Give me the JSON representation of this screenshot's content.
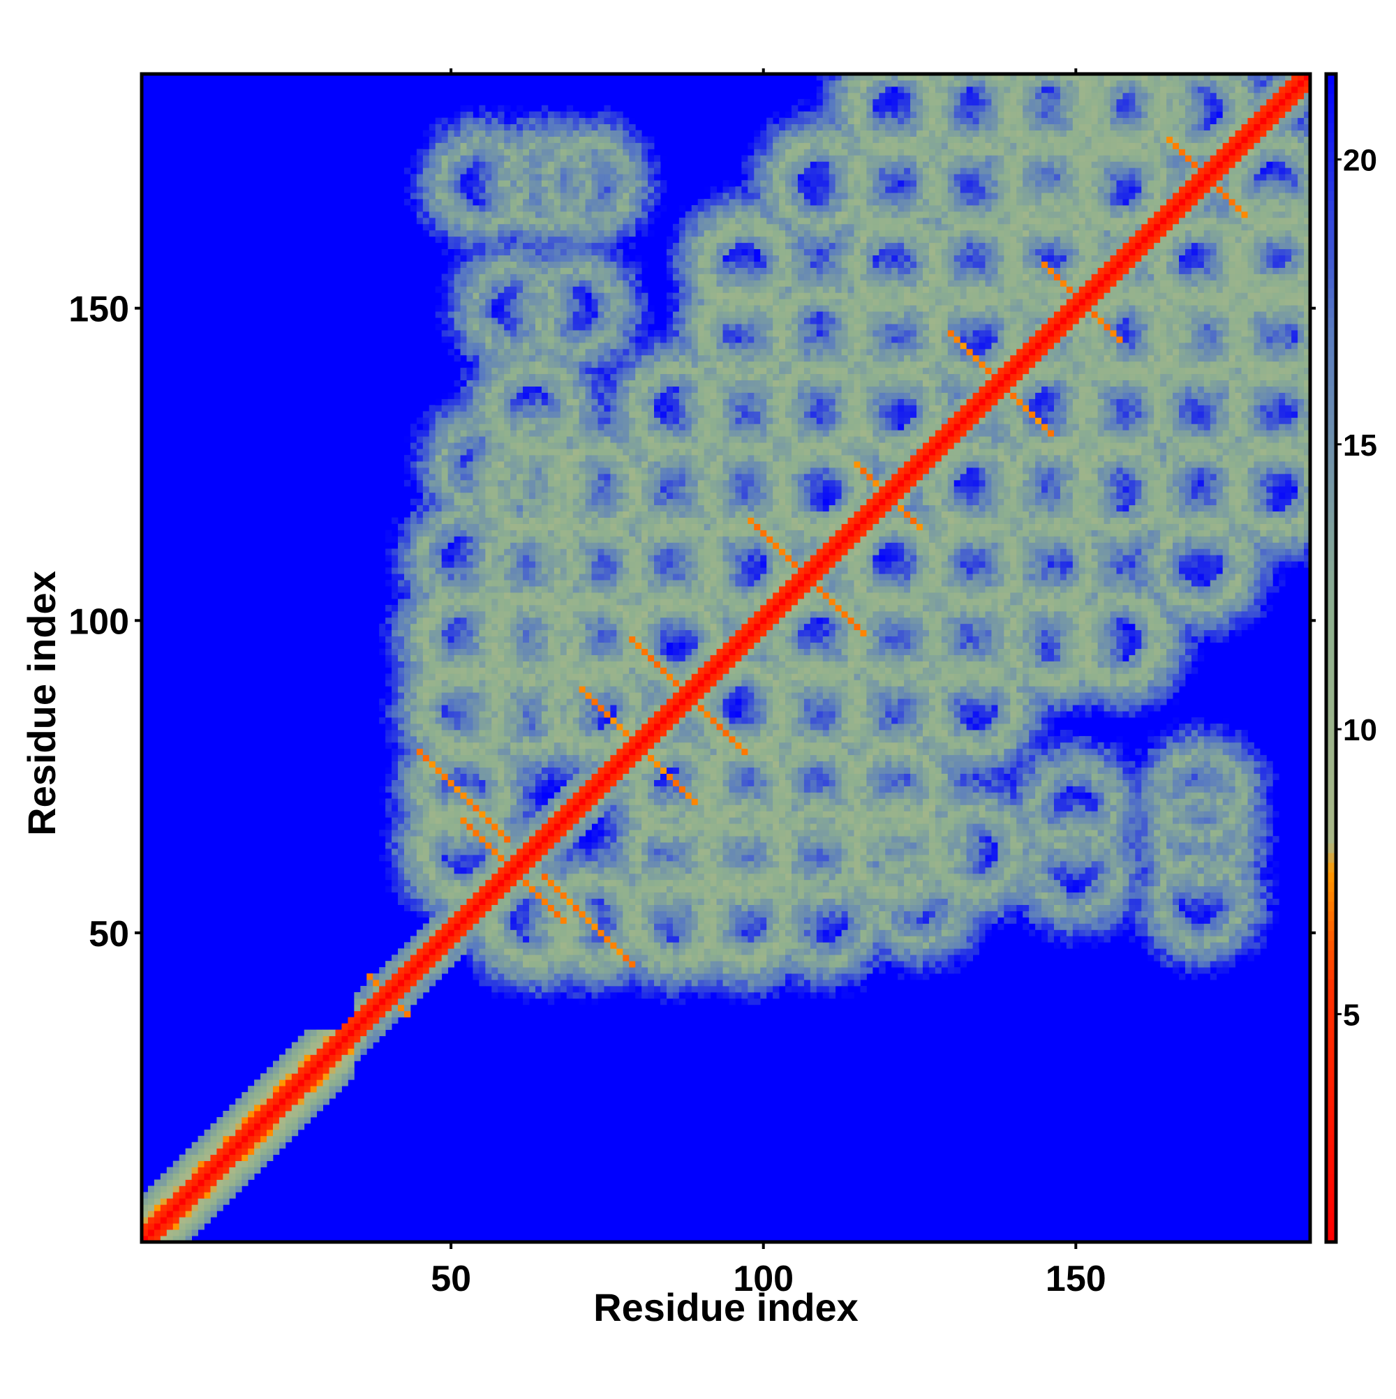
{
  "chart_data": {
    "type": "heatmap",
    "title": "",
    "xlabel": "Residue index",
    "ylabel": "Residue index",
    "xlim": [
      1,
      187
    ],
    "ylim": [
      1,
      187
    ],
    "x_ticks": [
      50,
      100,
      150
    ],
    "y_ticks": [
      50,
      100,
      150
    ],
    "colorbar": {
      "ticks": [
        5,
        10,
        15,
        20
      ],
      "range": [
        1,
        21.5
      ],
      "stops": [
        {
          "value": 1.0,
          "color": "#ff0000"
        },
        {
          "value": 5.5,
          "color": "#ff3300"
        },
        {
          "value": 7.5,
          "color": "#ff9900"
        },
        {
          "value": 8.0,
          "color": "#aab888"
        },
        {
          "value": 12.0,
          "color": "#8fb08f"
        },
        {
          "value": 17.0,
          "color": "#5a7cc0"
        },
        {
          "value": 21.5,
          "color": "#0000ff"
        }
      ]
    },
    "colors": {
      "background": "#0000ff",
      "diagonal": "#ff0000",
      "near_contact": "#ff9900",
      "mid_distance": "#9fb88f"
    },
    "matrix_description_values": {
      "n_residues": 187,
      "max_distance_value": 21.5,
      "diagonal_value": 1.0
    }
  }
}
